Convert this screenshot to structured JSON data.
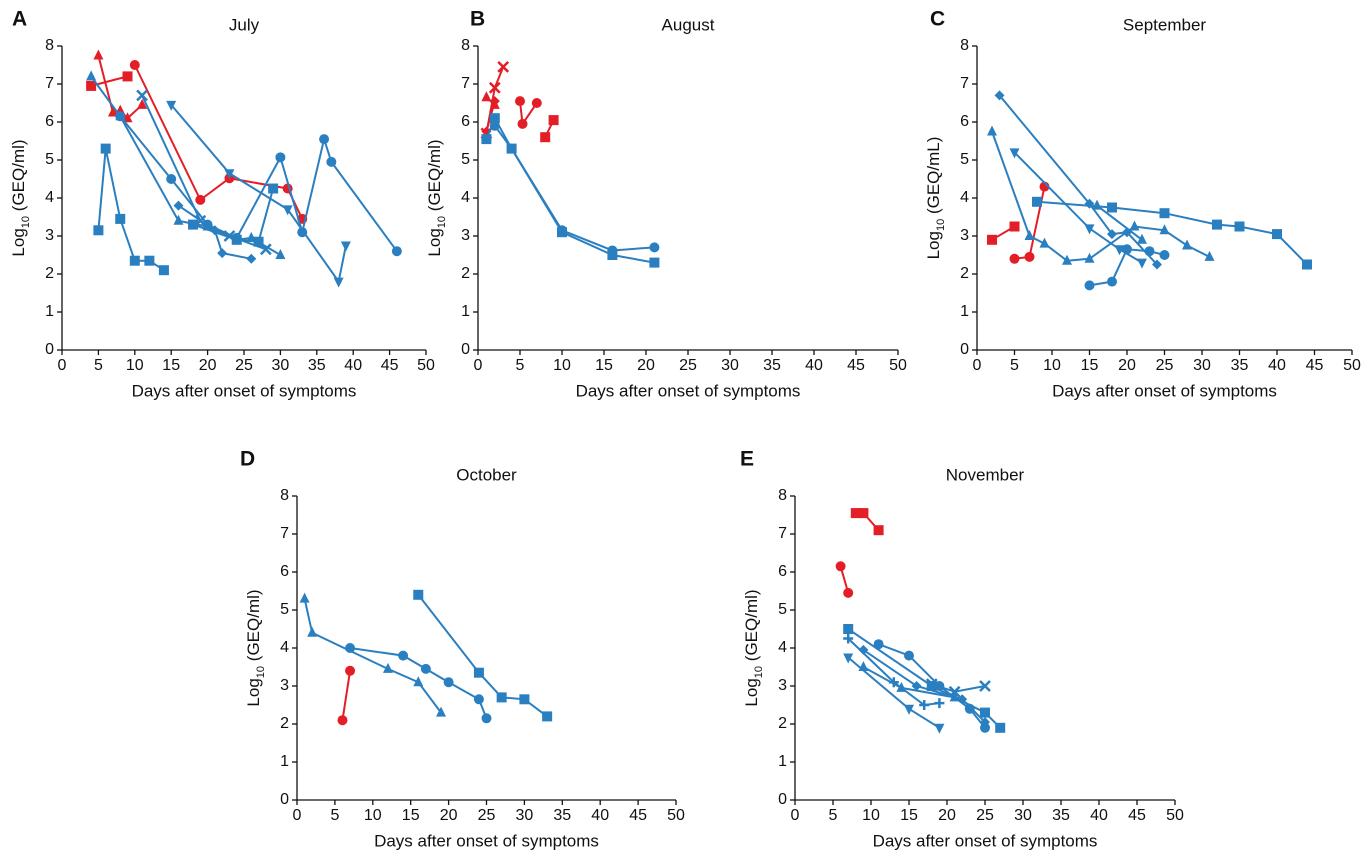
{
  "chart_data": [
    {
      "type": "line",
      "label": "A",
      "title": "July",
      "xlabel": "Days after onset of symptoms",
      "ylabel": [
        "Log",
        "10",
        " (GEQ/ml)"
      ],
      "xlim": [
        0,
        50
      ],
      "ylim": [
        0,
        8
      ],
      "xticks": [
        0,
        5,
        10,
        15,
        20,
        25,
        30,
        35,
        40,
        45,
        50
      ],
      "yticks": [
        0,
        1,
        2,
        3,
        4,
        5,
        6,
        7,
        8
      ],
      "series": [
        {
          "color": "#e41e26",
          "marker": "circle",
          "x": [
            10,
            19,
            23,
            31,
            33
          ],
          "values": [
            7.5,
            3.95,
            4.52,
            4.25,
            3.45
          ]
        },
        {
          "color": "#e41e26",
          "marker": "square",
          "x": [
            4,
            9
          ],
          "values": [
            6.95,
            7.2
          ]
        },
        {
          "color": "#e41e26",
          "marker": "triangle",
          "x": [
            5,
            7,
            8,
            9,
            11
          ],
          "values": [
            7.75,
            6.25,
            6.3,
            6.1,
            6.45
          ]
        },
        {
          "color": "#2a7fc1",
          "marker": "triangle",
          "x": [
            4,
            8,
            16,
            20,
            24,
            26,
            30
          ],
          "values": [
            7.2,
            6.15,
            3.4,
            3.25,
            2.9,
            2.95,
            2.5
          ]
        },
        {
          "color": "#2a7fc1",
          "marker": "square",
          "x": [
            5,
            6,
            8,
            10,
            12,
            14
          ],
          "values": [
            3.15,
            5.3,
            3.45,
            2.35,
            2.35,
            2.1
          ]
        },
        {
          "color": "#2a7fc1",
          "marker": "circle",
          "x": [
            8,
            15,
            20,
            24,
            30,
            33,
            36,
            37,
            46
          ],
          "values": [
            6.15,
            4.5,
            3.3,
            2.95,
            5.07,
            3.1,
            5.55,
            4.95,
            2.6
          ]
        },
        {
          "color": "#2a7fc1",
          "marker": "x",
          "x": [
            11,
            19,
            23,
            28
          ],
          "values": [
            6.7,
            3.4,
            3.0,
            2.65
          ]
        },
        {
          "color": "#2a7fc1",
          "marker": "triangle-down",
          "x": [
            15,
            23,
            31,
            38,
            39
          ],
          "values": [
            6.45,
            4.65,
            3.7,
            1.8,
            2.75
          ]
        },
        {
          "color": "#2a7fc1",
          "marker": "diamond",
          "x": [
            16,
            21,
            22,
            26
          ],
          "values": [
            3.8,
            3.15,
            2.55,
            2.4
          ]
        },
        {
          "color": "#2a7fc1",
          "marker": "square",
          "x": [
            18,
            24,
            27,
            29
          ],
          "values": [
            3.3,
            2.9,
            2.85,
            4.25
          ]
        }
      ]
    },
    {
      "type": "line",
      "label": "B",
      "title": "August",
      "xlabel": "Days after onset of symptoms",
      "ylabel": [
        "Log",
        "10",
        " (GEQ/ml)"
      ],
      "xlim": [
        0,
        50
      ],
      "ylim": [
        0,
        8
      ],
      "xticks": [
        0,
        5,
        10,
        15,
        20,
        25,
        30,
        35,
        40,
        45,
        50
      ],
      "yticks": [
        0,
        1,
        2,
        3,
        4,
        5,
        6,
        7,
        8
      ],
      "series": [
        {
          "color": "#e41e26",
          "marker": "x",
          "x": [
            1,
            2,
            3
          ],
          "values": [
            5.7,
            6.9,
            7.45
          ]
        },
        {
          "color": "#e41e26",
          "marker": "triangle",
          "x": [
            1,
            2
          ],
          "values": [
            6.65,
            6.45
          ]
        },
        {
          "color": "#e41e26",
          "marker": "diamond",
          "x": [
            1,
            2
          ],
          "values": [
            5.75,
            6.55
          ]
        },
        {
          "color": "#e41e26",
          "marker": "circle",
          "x": [
            5,
            5.3,
            7
          ],
          "values": [
            6.55,
            5.95,
            6.5
          ]
        },
        {
          "color": "#e41e26",
          "marker": "square",
          "x": [
            8,
            9
          ],
          "values": [
            5.6,
            6.05
          ]
        },
        {
          "color": "#2a7fc1",
          "marker": "square",
          "x": [
            1,
            2,
            4,
            10,
            16,
            21
          ],
          "values": [
            5.55,
            6.1,
            5.3,
            3.1,
            2.5,
            2.3
          ]
        },
        {
          "color": "#2a7fc1",
          "marker": "circle",
          "x": [
            2,
            4,
            10,
            16,
            21
          ],
          "values": [
            5.9,
            5.3,
            3.15,
            2.62,
            2.7
          ]
        }
      ]
    },
    {
      "type": "line",
      "label": "C",
      "title": "September",
      "xlabel": "Days after onset of symptoms",
      "ylabel": [
        "Log",
        "10",
        " (GEQ/mL)"
      ],
      "xlim": [
        0,
        50
      ],
      "ylim": [
        0,
        8
      ],
      "xticks": [
        0,
        5,
        10,
        15,
        20,
        25,
        30,
        35,
        40,
        45,
        50
      ],
      "yticks": [
        0,
        1,
        2,
        3,
        4,
        5,
        6,
        7,
        8
      ],
      "series": [
        {
          "color": "#e41e26",
          "marker": "square",
          "x": [
            2,
            5
          ],
          "values": [
            2.9,
            3.25
          ]
        },
        {
          "color": "#e41e26",
          "marker": "circle",
          "x": [
            5,
            7,
            9
          ],
          "values": [
            2.4,
            2.45,
            4.3
          ]
        },
        {
          "color": "#2a7fc1",
          "marker": "diamond",
          "x": [
            3,
            15,
            18,
            20,
            24
          ],
          "values": [
            6.7,
            3.85,
            3.05,
            3.1,
            2.25
          ]
        },
        {
          "color": "#2a7fc1",
          "marker": "triangle",
          "x": [
            2,
            7,
            9,
            12,
            15,
            21,
            25,
            28,
            31
          ],
          "values": [
            5.75,
            3.0,
            2.8,
            2.35,
            2.4,
            3.25,
            3.15,
            2.75,
            2.45
          ]
        },
        {
          "color": "#2a7fc1",
          "marker": "triangle-down",
          "x": [
            5,
            15,
            19,
            22
          ],
          "values": [
            5.2,
            3.2,
            2.65,
            2.3
          ]
        },
        {
          "color": "#2a7fc1",
          "marker": "square",
          "x": [
            8,
            18,
            25,
            32,
            35,
            40,
            44
          ],
          "values": [
            3.9,
            3.75,
            3.6,
            3.3,
            3.25,
            3.05,
            2.25
          ]
        },
        {
          "color": "#2a7fc1",
          "marker": "circle",
          "x": [
            15,
            18,
            20,
            23,
            25
          ],
          "values": [
            1.7,
            1.8,
            2.65,
            2.6,
            2.5
          ]
        },
        {
          "color": "#2a7fc1",
          "marker": "triangle",
          "x": [
            16,
            22
          ],
          "values": [
            3.8,
            2.9
          ]
        }
      ]
    },
    {
      "type": "line",
      "label": "D",
      "title": "October",
      "xlabel": "Days after onset of symptoms",
      "ylabel": [
        "Log",
        "10",
        " (GEQ/ml)"
      ],
      "xlim": [
        0,
        50
      ],
      "ylim": [
        0,
        8
      ],
      "xticks": [
        0,
        5,
        10,
        15,
        20,
        25,
        30,
        35,
        40,
        45,
        50
      ],
      "yticks": [
        0,
        1,
        2,
        3,
        4,
        5,
        6,
        7,
        8
      ],
      "series": [
        {
          "color": "#e41e26",
          "marker": "circle",
          "x": [
            6,
            7
          ],
          "values": [
            2.1,
            3.4
          ]
        },
        {
          "color": "#2a7fc1",
          "marker": "triangle",
          "x": [
            1,
            2,
            12,
            16,
            19
          ],
          "values": [
            5.3,
            4.4,
            3.45,
            3.1,
            2.3
          ]
        },
        {
          "color": "#2a7fc1",
          "marker": "circle",
          "x": [
            7,
            14,
            17,
            20,
            24,
            25
          ],
          "values": [
            4.0,
            3.8,
            3.45,
            3.1,
            2.65,
            2.15
          ]
        },
        {
          "color": "#2a7fc1",
          "marker": "square",
          "x": [
            16,
            24,
            27,
            30,
            33
          ],
          "values": [
            5.4,
            3.35,
            2.7,
            2.65,
            2.2
          ]
        }
      ]
    },
    {
      "type": "line",
      "label": "E",
      "title": "November",
      "xlabel": "Days after onset of symptoms",
      "ylabel": [
        "Log",
        "10",
        " (GEQ/ml)"
      ],
      "xlim": [
        0,
        50
      ],
      "ylim": [
        0,
        8
      ],
      "xticks": [
        0,
        5,
        10,
        15,
        20,
        25,
        30,
        35,
        40,
        45,
        50
      ],
      "yticks": [
        0,
        1,
        2,
        3,
        4,
        5,
        6,
        7,
        8
      ],
      "series": [
        {
          "color": "#e41e26",
          "marker": "square",
          "x": [
            8,
            9,
            11
          ],
          "values": [
            7.55,
            7.55,
            7.1
          ]
        },
        {
          "color": "#e41e26",
          "marker": "circle",
          "x": [
            6,
            7
          ],
          "values": [
            6.15,
            5.45
          ]
        },
        {
          "color": "#2a7fc1",
          "marker": "square",
          "x": [
            7,
            18,
            25,
            27
          ],
          "values": [
            4.5,
            3.0,
            2.3,
            1.9
          ]
        },
        {
          "color": "#2a7fc1",
          "marker": "circle",
          "x": [
            11,
            15,
            19,
            23,
            25
          ],
          "values": [
            4.1,
            3.8,
            3.0,
            2.4,
            1.9
          ]
        },
        {
          "color": "#2a7fc1",
          "marker": "plus",
          "x": [
            7,
            13,
            17,
            19
          ],
          "values": [
            4.25,
            3.1,
            2.5,
            2.55
          ]
        },
        {
          "color": "#2a7fc1",
          "marker": "triangle-down",
          "x": [
            7,
            15,
            19
          ],
          "values": [
            3.75,
            2.4,
            1.9
          ]
        },
        {
          "color": "#2a7fc1",
          "marker": "triangle",
          "x": [
            9,
            14,
            21
          ],
          "values": [
            3.5,
            2.95,
            2.7
          ]
        },
        {
          "color": "#2a7fc1",
          "marker": "diamond",
          "x": [
            9,
            16,
            22,
            25
          ],
          "values": [
            3.95,
            3.0,
            2.65,
            2.05
          ]
        },
        {
          "color": "#2a7fc1",
          "marker": "x",
          "x": [
            18,
            21,
            25
          ],
          "values": [
            3.05,
            2.85,
            3.0
          ]
        }
      ]
    }
  ]
}
